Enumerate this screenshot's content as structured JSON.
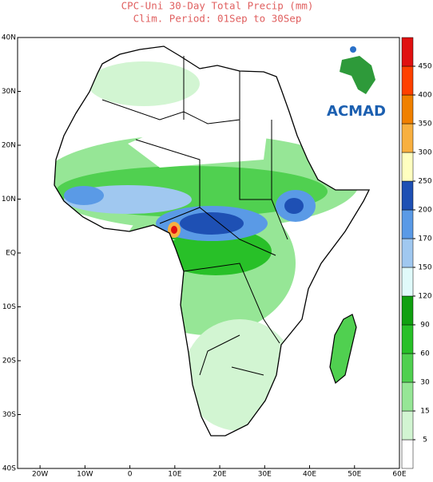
{
  "chart_data": {
    "type": "map",
    "title": "CPC-Uni 30-Day Total Precip (mm)",
    "subtitle": "Clim. Period: 01Sep to 30Sep",
    "logo": "ACMAD",
    "xlim": [
      -25,
      60
    ],
    "ylim": [
      -40,
      40
    ],
    "xticks": [
      {
        "value": -20,
        "label": "20W"
      },
      {
        "value": -10,
        "label": "10W"
      },
      0,
      {
        "value": 10,
        "label": "10E"
      },
      {
        "value": 20,
        "label": "20E"
      },
      {
        "value": 30,
        "label": "30E"
      },
      {
        "value": 40,
        "label": "40E"
      },
      {
        "value": 50,
        "label": "50E"
      },
      {
        "value": 60,
        "label": "60E"
      }
    ],
    "yticks": [
      {
        "value": 40,
        "label": "40N"
      },
      {
        "value": 30,
        "label": "30N"
      },
      {
        "value": 20,
        "label": "20N"
      },
      {
        "value": 10,
        "label": "10N"
      },
      {
        "value": 0,
        "label": "EQ"
      },
      {
        "value": -10,
        "label": "10S"
      },
      {
        "value": -20,
        "label": "20S"
      },
      {
        "value": -30,
        "label": "30S"
      },
      {
        "value": -40,
        "label": "40S"
      }
    ],
    "colorbar": {
      "levels": [
        5,
        15,
        30,
        60,
        90,
        120,
        150,
        170,
        200,
        250,
        300,
        350,
        400,
        450
      ],
      "colors": [
        "#ffffff",
        "#d2f5d2",
        "#96e696",
        "#50d050",
        "#28c028",
        "#10a010",
        "#e0fafa",
        "#a0c8f0",
        "#5a9ae6",
        "#1e50b4",
        "#ffffc0",
        "#f8b040",
        "#f08000",
        "#ff4000",
        "#e01010"
      ]
    }
  }
}
